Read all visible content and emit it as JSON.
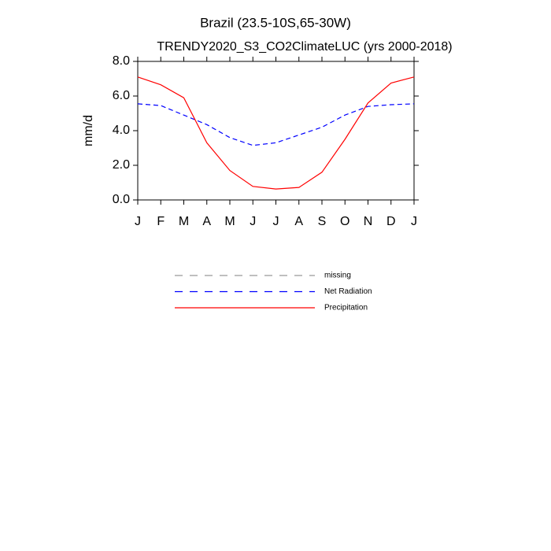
{
  "chart_data": {
    "type": "line",
    "title": "Brazil (23.5-10S,65-30W)",
    "subtitle": "TRENDY2020_S3_CO2ClimateLUC (yrs 2000-2018)",
    "y_label": "mm/d",
    "categories": [
      "J",
      "F",
      "M",
      "A",
      "M",
      "J",
      "J",
      "A",
      "S",
      "O",
      "N",
      "D",
      "J"
    ],
    "ylim": [
      0,
      8
    ],
    "yticks": [
      {
        "value": 0,
        "label": "0.0"
      },
      {
        "value": 2,
        "label": "2.0"
      },
      {
        "value": 4,
        "label": "4.0"
      },
      {
        "value": 6,
        "label": "6.0"
      },
      {
        "value": 8,
        "label": "8.0"
      }
    ],
    "series": [
      {
        "name": "missing",
        "color": "#999999",
        "dashed": true,
        "values": [
          null,
          null,
          null,
          null,
          null,
          null,
          null,
          null,
          null,
          null,
          null,
          null,
          null
        ]
      },
      {
        "name": "Net Radiation",
        "color": "#0000ff",
        "dashed": true,
        "values": [
          5.55,
          5.45,
          4.9,
          4.35,
          3.6,
          3.15,
          3.3,
          3.75,
          4.2,
          4.9,
          5.4,
          5.5,
          5.55
        ]
      },
      {
        "name": "Precipitation",
        "color": "#ff0000",
        "dashed": false,
        "values": [
          7.1,
          6.65,
          5.9,
          3.3,
          1.7,
          0.78,
          0.63,
          0.72,
          1.6,
          3.5,
          5.6,
          6.75,
          7.1
        ]
      }
    ]
  }
}
